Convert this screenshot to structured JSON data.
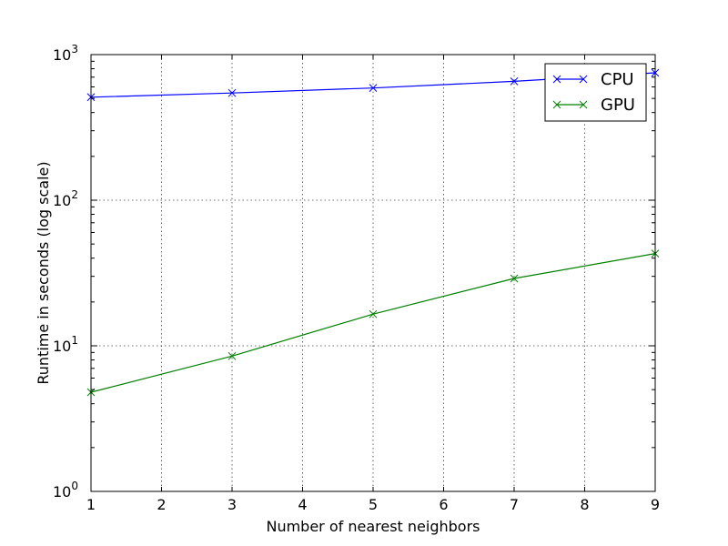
{
  "chart_data": {
    "type": "line",
    "title": "",
    "xlabel": "Number of nearest neighbors",
    "ylabel": "Runtime in seconds (log scale)",
    "xlim": [
      1,
      9
    ],
    "ylim": [
      1,
      1000
    ],
    "yscale": "log",
    "grid": true,
    "legend_position": "top-right",
    "x_ticks": [
      {
        "value": 1,
        "label": "1"
      },
      {
        "value": 2,
        "label": "2"
      },
      {
        "value": 3,
        "label": "3"
      },
      {
        "value": 4,
        "label": "4"
      },
      {
        "value": 5,
        "label": "5"
      },
      {
        "value": 6,
        "label": "6"
      },
      {
        "value": 7,
        "label": "7"
      },
      {
        "value": 8,
        "label": "8"
      },
      {
        "value": 9,
        "label": "9"
      }
    ],
    "y_ticks": [
      {
        "value": 1,
        "base": "10",
        "exp": "0"
      },
      {
        "value": 10,
        "base": "10",
        "exp": "1"
      },
      {
        "value": 100,
        "base": "10",
        "exp": "2"
      },
      {
        "value": 1000,
        "base": "10",
        "exp": "3"
      }
    ],
    "series": [
      {
        "name": "CPU",
        "color": "#0000ff",
        "marker": "x",
        "x": [
          1,
          3,
          5,
          7,
          9
        ],
        "y": [
          510,
          545,
          590,
          655,
          750
        ]
      },
      {
        "name": "GPU",
        "color": "#008000",
        "marker": "x",
        "x": [
          1,
          3,
          5,
          7,
          9
        ],
        "y": [
          4.8,
          8.5,
          16.5,
          29,
          43
        ]
      }
    ]
  }
}
